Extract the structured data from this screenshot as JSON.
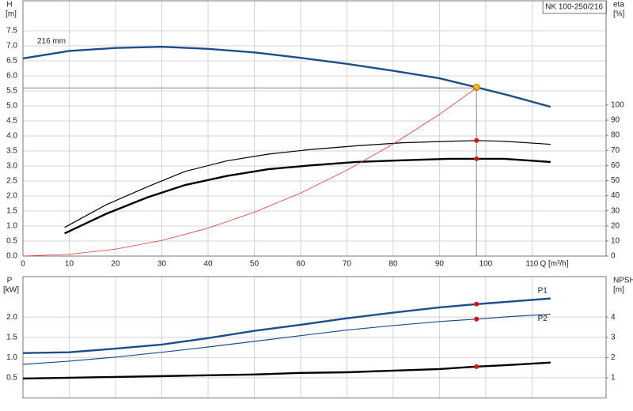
{
  "chart_data": [
    {
      "type": "line",
      "title": "NK 100-250/216",
      "ylabel": "H",
      "yunit": "[m]",
      "y2label": "eta",
      "y2unit": "[%]",
      "xlabel": "Q [m³/h]",
      "xlim": [
        0,
        126
      ],
      "ylim": [
        0,
        8.5
      ],
      "y2lim": [
        0,
        169
      ],
      "xticks": [
        0,
        10,
        20,
        30,
        40,
        50,
        60,
        70,
        80,
        90,
        100,
        110
      ],
      "yticks": [
        {
          "value": 0,
          "label": "0.0"
        },
        0.5,
        {
          "value": 1,
          "label": "1.0"
        },
        1.5,
        {
          "value": 2,
          "label": "2.0"
        },
        2.5,
        {
          "value": 3,
          "label": "3.0"
        },
        3.5,
        {
          "value": 4,
          "label": "4.0"
        },
        4.5,
        {
          "value": 5,
          "label": "5.0"
        },
        5.5,
        {
          "value": 6,
          "label": "6.0"
        },
        6.5,
        {
          "value": 7,
          "label": "7.0"
        },
        7.5
      ],
      "y2ticks": [
        0,
        10,
        20,
        30,
        40,
        50,
        60,
        70,
        80,
        90,
        100
      ],
      "grid": true,
      "operating_point": {
        "x": 98,
        "y": 5.6
      },
      "series": [
        {
          "name": "216 mm",
          "color": "#1b4f8c",
          "style": "thick",
          "x": [
            0,
            10,
            20,
            30,
            40,
            50,
            60,
            70,
            80,
            90,
            98,
            105,
            114
          ],
          "values": [
            6.58,
            6.83,
            6.93,
            6.97,
            6.9,
            6.78,
            6.6,
            6.4,
            6.17,
            5.92,
            5.62,
            5.35,
            4.97
          ]
        },
        {
          "color": "#000000",
          "style": "thin",
          "axis": "y2",
          "x": [
            9,
            18,
            27,
            35,
            44,
            53,
            62,
            72,
            82,
            92,
            98,
            104,
            114
          ],
          "values": [
            19,
            34,
            46,
            56,
            63,
            67.5,
            70.5,
            73,
            75,
            76,
            76.5,
            76,
            74
          ]
        },
        {
          "color": "#000000",
          "style": "thick",
          "axis": "y2",
          "x": [
            9,
            18,
            27,
            35,
            44,
            53,
            62,
            72,
            82,
            92,
            98,
            104,
            114
          ],
          "values": [
            15,
            28,
            39,
            47,
            53,
            57.5,
            60,
            62.3,
            63.4,
            64.4,
            64.4,
            64.4,
            62.3
          ]
        },
        {
          "color": "#e83030",
          "style": "hair",
          "x": [
            0,
            10,
            20,
            30,
            40,
            50,
            60,
            70,
            80,
            90,
            98
          ],
          "values": [
            0,
            0.06,
            0.23,
            0.52,
            0.93,
            1.46,
            2.1,
            2.86,
            3.73,
            4.72,
            5.6
          ]
        }
      ]
    },
    {
      "type": "line",
      "ylabel": "P",
      "yunit": "[kW]",
      "y2label": "NPSH",
      "y2unit": "[m]",
      "xlim": [
        0,
        126
      ],
      "ylim": [
        0,
        3
      ],
      "y2lim": [
        0,
        6
      ],
      "yticks": [
        0.5,
        {
          "value": 1,
          "label": "1.0"
        },
        1.5,
        {
          "value": 2,
          "label": "2.0"
        }
      ],
      "y2ticks": [
        1,
        2,
        3,
        4
      ],
      "grid": true,
      "operating_point": {
        "x": 98
      },
      "series": [
        {
          "name": "P1",
          "color": "#1b4f8c",
          "style": "thick",
          "x": [
            0,
            10,
            20,
            30,
            40,
            50,
            60,
            70,
            80,
            90,
            98,
            105,
            114
          ],
          "values": [
            1.11,
            1.13,
            1.22,
            1.32,
            1.48,
            1.66,
            1.81,
            1.97,
            2.11,
            2.24,
            2.32,
            2.38,
            2.46
          ]
        },
        {
          "name": "P2",
          "color": "#1b4f8c",
          "style": "thin",
          "x": [
            0,
            10,
            20,
            30,
            40,
            50,
            60,
            70,
            80,
            90,
            98,
            105,
            114
          ],
          "values": [
            0.83,
            0.91,
            1.01,
            1.13,
            1.26,
            1.4,
            1.54,
            1.68,
            1.79,
            1.89,
            1.95,
            2.01,
            2.07
          ]
        },
        {
          "color": "#000000",
          "style": "thick",
          "axis": "y2",
          "x": [
            0,
            10,
            20,
            30,
            40,
            50,
            60,
            70,
            80,
            90,
            98,
            105,
            114
          ],
          "values": [
            0.96,
            1.0,
            1.04,
            1.08,
            1.12,
            1.16,
            1.24,
            1.27,
            1.35,
            1.43,
            1.55,
            1.63,
            1.75
          ]
        }
      ]
    }
  ]
}
